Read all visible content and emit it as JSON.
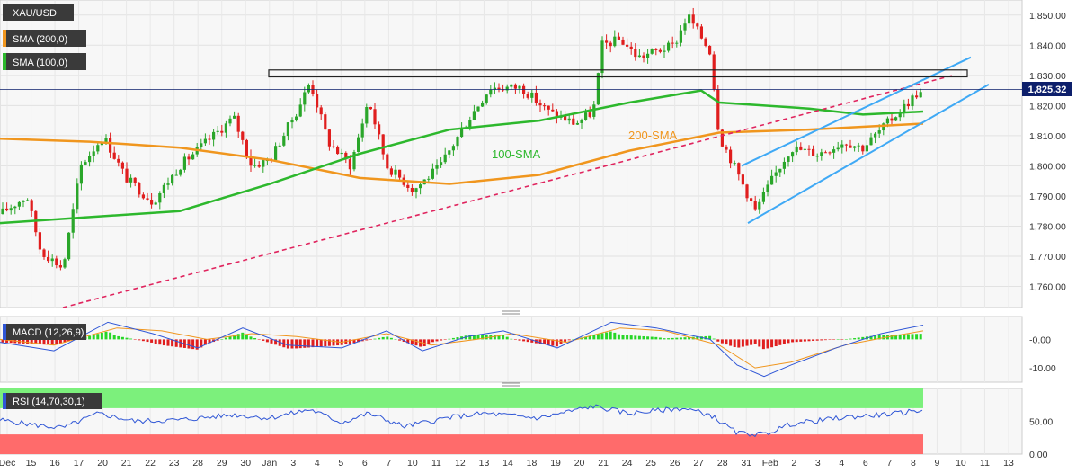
{
  "symbol": "XAU/USD",
  "legends": [
    {
      "label": "XAU/USD",
      "color": "#3a3a3a"
    },
    {
      "label": "SMA (200,0)",
      "color": "#f0961e"
    },
    {
      "label": "SMA (100,0)",
      "color": "#2db82d"
    }
  ],
  "current_price": "1,825.32",
  "annotations": {
    "sma200": "200-SMA",
    "sma100": "100-SMA"
  },
  "colors": {
    "up": "#2aa62a",
    "down": "#e01e1e",
    "sma200": "#f0961e",
    "sma100": "#2db82d",
    "channel": "#3fa9f5",
    "trend": "#e0245e",
    "macd": "#2f56d6",
    "signal": "#f0961e",
    "rsi": "#2f56d6",
    "overbought": "#7cf07c",
    "oversold": "#ff6b6b"
  },
  "chart_data": [
    {
      "type": "candlestick",
      "title": "XAU/USD",
      "x_ticks": [
        "Dec",
        "15",
        "16",
        "17",
        "20",
        "21",
        "22",
        "23",
        "28",
        "29",
        "30",
        "Jan",
        "3",
        "4",
        "5",
        "6",
        "7",
        "10",
        "11",
        "12",
        "13",
        "14",
        "18",
        "19",
        "20",
        "21",
        "24",
        "25",
        "26",
        "27",
        "28",
        "31",
        "Feb",
        "2",
        "3",
        "4",
        "6",
        "7",
        "8",
        "9",
        "10",
        "11",
        "13"
      ],
      "y_ticks": [
        "1,760.00",
        "1,770.00",
        "1,780.00",
        "1,790.00",
        "1,800.00",
        "1,810.00",
        "1,820.00",
        "1,830.00",
        "1,840.00",
        "1,850.00"
      ],
      "ylim": [
        1753,
        1855
      ],
      "current": 1825.32,
      "resistance_zone": [
        1829.5,
        1831.8
      ],
      "close_path": [
        [
          0,
          1784
        ],
        [
          30,
          1790
        ],
        [
          45,
          1772
        ],
        [
          70,
          1766
        ],
        [
          90,
          1800
        ],
        [
          115,
          1810
        ],
        [
          140,
          1796
        ],
        [
          170,
          1788
        ],
        [
          200,
          1800
        ],
        [
          230,
          1808
        ],
        [
          260,
          1816
        ],
        [
          280,
          1800
        ],
        [
          300,
          1802
        ],
        [
          330,
          1818
        ],
        [
          345,
          1828
        ],
        [
          365,
          1808
        ],
        [
          390,
          1800
        ],
        [
          410,
          1822
        ],
        [
          430,
          1800
        ],
        [
          460,
          1792
        ],
        [
          490,
          1800
        ],
        [
          520,
          1815
        ],
        [
          545,
          1826
        ],
        [
          580,
          1826
        ],
        [
          610,
          1818
        ],
        [
          640,
          1814
        ],
        [
          660,
          1818
        ],
        [
          670,
          1840
        ],
        [
          690,
          1842
        ],
        [
          710,
          1836
        ],
        [
          730,
          1838
        ],
        [
          750,
          1840
        ],
        [
          765,
          1850
        ],
        [
          790,
          1838
        ],
        [
          800,
          1810
        ],
        [
          820,
          1798
        ],
        [
          840,
          1785
        ],
        [
          860,
          1796
        ],
        [
          880,
          1806
        ],
        [
          910,
          1804
        ],
        [
          940,
          1808
        ],
        [
          960,
          1806
        ],
        [
          980,
          1812
        ],
        [
          1000,
          1818
        ],
        [
          1020,
          1824
        ]
      ],
      "sma200_path": [
        [
          0,
          1809
        ],
        [
          100,
          1808
        ],
        [
          200,
          1806
        ],
        [
          300,
          1802
        ],
        [
          400,
          1796
        ],
        [
          500,
          1794
        ],
        [
          600,
          1797
        ],
        [
          700,
          1805
        ],
        [
          800,
          1811
        ],
        [
          900,
          1812
        ],
        [
          1027,
          1814
        ]
      ],
      "sma100_path": [
        [
          0,
          1781
        ],
        [
          100,
          1783
        ],
        [
          200,
          1785
        ],
        [
          300,
          1794
        ],
        [
          400,
          1804
        ],
        [
          500,
          1812
        ],
        [
          600,
          1815
        ],
        [
          700,
          1821
        ],
        [
          780,
          1825
        ],
        [
          800,
          1821
        ],
        [
          900,
          1819
        ],
        [
          960,
          1817
        ],
        [
          1027,
          1818
        ]
      ],
      "trendline": [
        [
          70,
          1753
        ],
        [
          1060,
          1830
        ]
      ],
      "channel_upper": [
        [
          825,
          1800
        ],
        [
          1080,
          1836
        ]
      ],
      "channel_lower": [
        [
          832,
          1781
        ],
        [
          1100,
          1827
        ]
      ]
    },
    {
      "type": "line",
      "title": "MACD (12,26,9)",
      "y_ticks": [
        "-10.00",
        "-0.00"
      ],
      "ylim": [
        -15,
        8
      ],
      "macd_path": [
        [
          0,
          -1
        ],
        [
          60,
          -4
        ],
        [
          120,
          6
        ],
        [
          170,
          2
        ],
        [
          220,
          -3
        ],
        [
          270,
          4
        ],
        [
          320,
          -2
        ],
        [
          380,
          -3
        ],
        [
          430,
          3
        ],
        [
          470,
          -4
        ],
        [
          520,
          1
        ],
        [
          560,
          3
        ],
        [
          620,
          -3
        ],
        [
          680,
          6
        ],
        [
          730,
          4
        ],
        [
          790,
          0
        ],
        [
          820,
          -9
        ],
        [
          850,
          -13
        ],
        [
          880,
          -9
        ],
        [
          930,
          -3
        ],
        [
          980,
          2
        ],
        [
          1027,
          5
        ]
      ],
      "signal_path": [
        [
          0,
          0
        ],
        [
          60,
          -2
        ],
        [
          130,
          4
        ],
        [
          180,
          3
        ],
        [
          230,
          0
        ],
        [
          280,
          2
        ],
        [
          330,
          1
        ],
        [
          380,
          -1
        ],
        [
          430,
          2
        ],
        [
          480,
          -2
        ],
        [
          530,
          0
        ],
        [
          570,
          2
        ],
        [
          630,
          -1
        ],
        [
          690,
          4
        ],
        [
          740,
          3
        ],
        [
          800,
          -2
        ],
        [
          840,
          -10
        ],
        [
          880,
          -8
        ],
        [
          940,
          -2
        ],
        [
          990,
          1
        ],
        [
          1027,
          3
        ]
      ]
    },
    {
      "type": "line",
      "title": "RSI (14,70,30,1)",
      "y_ticks": [
        "0.00",
        "50.00"
      ],
      "ylim": [
        0,
        100
      ],
      "overbought": 70,
      "oversold": 30,
      "rsi_path": [
        [
          0,
          52
        ],
        [
          40,
          44
        ],
        [
          70,
          40
        ],
        [
          110,
          62
        ],
        [
          150,
          50
        ],
        [
          200,
          52
        ],
        [
          260,
          60
        ],
        [
          300,
          55
        ],
        [
          345,
          68
        ],
        [
          380,
          48
        ],
        [
          410,
          62
        ],
        [
          450,
          42
        ],
        [
          500,
          56
        ],
        [
          540,
          62
        ],
        [
          600,
          55
        ],
        [
          660,
          73
        ],
        [
          700,
          62
        ],
        [
          760,
          70
        ],
        [
          790,
          60
        ],
        [
          820,
          32
        ],
        [
          850,
          30
        ],
        [
          880,
          46
        ],
        [
          940,
          56
        ],
        [
          1000,
          62
        ],
        [
          1027,
          68
        ]
      ]
    }
  ]
}
